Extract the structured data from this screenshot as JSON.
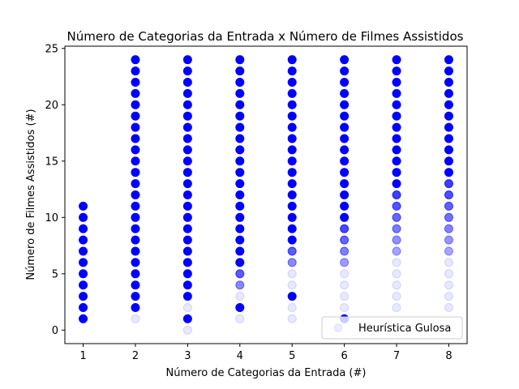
{
  "chart_data": {
    "type": "scatter",
    "title": "Número de Categorias da Entrada x Número de Filmes Assistidos",
    "xlabel": "Número de Categorias da Entrada (#)",
    "ylabel": "Número de Filmes Assistidos (#)",
    "xlim": [
      0.65,
      8.35
    ],
    "ylim": [
      -1.2,
      25.2
    ],
    "xticks": [
      1,
      2,
      3,
      4,
      5,
      6,
      7,
      8
    ],
    "yticks": [
      0,
      5,
      10,
      15,
      20,
      25
    ],
    "grid": false,
    "legend_position": "lower right",
    "marker_color": "#0000ff",
    "series": [
      {
        "name": "Heurística Gulosa",
        "alpha": 0.08,
        "columns": [
          {
            "x": 1,
            "y_min": 1,
            "y_max": 11,
            "faint": [],
            "medium": []
          },
          {
            "x": 2,
            "y_min": 1,
            "y_max": 24,
            "faint": [
              1
            ],
            "medium": []
          },
          {
            "x": 3,
            "y_min": 0,
            "y_max": 24,
            "faint": [
              0,
              2
            ],
            "medium": []
          },
          {
            "x": 4,
            "y_min": 1,
            "y_max": 24,
            "faint": [
              1,
              3
            ],
            "medium": [
              4,
              5
            ]
          },
          {
            "x": 5,
            "y_min": 1,
            "y_max": 24,
            "faint": [
              1,
              2,
              4,
              5
            ],
            "medium": [
              6,
              7
            ]
          },
          {
            "x": 6,
            "y_min": 1,
            "y_max": 24,
            "faint": [
              2,
              3,
              4,
              5
            ],
            "medium": [
              6,
              7,
              8,
              9
            ]
          },
          {
            "x": 7,
            "y_min": 2,
            "y_max": 24,
            "faint": [
              2,
              3,
              4,
              5,
              6
            ],
            "medium": [
              7,
              8,
              9,
              10,
              11,
              12
            ]
          },
          {
            "x": 8,
            "y_min": 2,
            "y_max": 24,
            "faint": [
              2,
              3,
              4,
              5,
              6
            ],
            "medium": [
              7,
              8,
              9,
              10,
              11,
              12,
              13
            ]
          }
        ]
      }
    ]
  }
}
